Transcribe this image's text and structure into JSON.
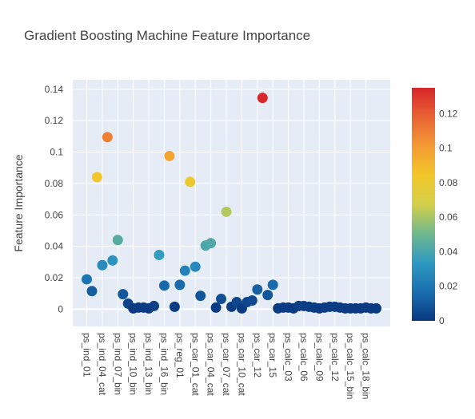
{
  "chart_data": {
    "type": "scatter",
    "title": "Gradient Boosting Machine Feature Importance",
    "xlabel": "",
    "ylabel": "Feature Importance",
    "ylim": [
      -0.011,
      0.146
    ],
    "y_ticks": [
      0,
      0.02,
      0.04,
      0.06,
      0.08,
      0.1,
      0.12,
      0.14
    ],
    "y_tick_labels": [
      "0",
      "0.02",
      "0.04",
      "0.06",
      "0.08",
      "0.1",
      "0.12",
      "0.14"
    ],
    "x_tick_labels": [
      "ps_ind_01",
      "ps_ind_04_cat",
      "ps_ind_07_bin",
      "ps_ind_10_bin",
      "ps_ind_13_bin",
      "ps_ind_16_bin",
      "ps_reg_01",
      "ps_car_01_cat",
      "ps_car_04_cat",
      "ps_car_07_cat",
      "ps_car_10_cat",
      "ps_car_12",
      "ps_car_15",
      "ps_calc_03",
      "ps_calc_06",
      "ps_calc_09",
      "ps_calc_12",
      "ps_calc_15_bin",
      "ps_calc_18_bin"
    ],
    "grid": true,
    "colorscale": {
      "min": 0,
      "max": 0.135,
      "ticks": [
        0,
        0.02,
        0.04,
        0.06,
        0.08,
        0.1,
        0.12
      ],
      "tick_labels": [
        "0",
        "0.02",
        "0.04",
        "0.06",
        "0.08",
        "0.1",
        "0.12"
      ],
      "stops": [
        "#0a3880",
        "#1a6fb0",
        "#2f9ac2",
        "#6fb88c",
        "#d4cf4a",
        "#f3c72a",
        "#f39a34",
        "#e96233",
        "#d6262a"
      ]
    },
    "values": [
      0.019,
      0.0115,
      0.084,
      0.028,
      0.1095,
      0.031,
      0.044,
      0.0095,
      0.0035,
      0.0005,
      0.001,
      0.001,
      0.0005,
      0.002,
      0.0345,
      0.015,
      0.0975,
      0.0015,
      0.0155,
      0.0245,
      0.081,
      0.027,
      0.0085,
      0.0405,
      0.042,
      0.001,
      0.0065,
      0.062,
      0.0015,
      0.0045,
      0.0005,
      0.0045,
      0.0055,
      0.0125,
      0.1345,
      0.009,
      0.0155,
      0.0005,
      0.001,
      0.001,
      0.0005,
      0.002,
      0.002,
      0.0015,
      0.001,
      0.0005,
      0.001,
      0.0015,
      0.0015,
      0.001,
      0.0005,
      0.0005,
      0.0005,
      0.0005,
      0.001,
      0.0005,
      0.0005
    ]
  }
}
